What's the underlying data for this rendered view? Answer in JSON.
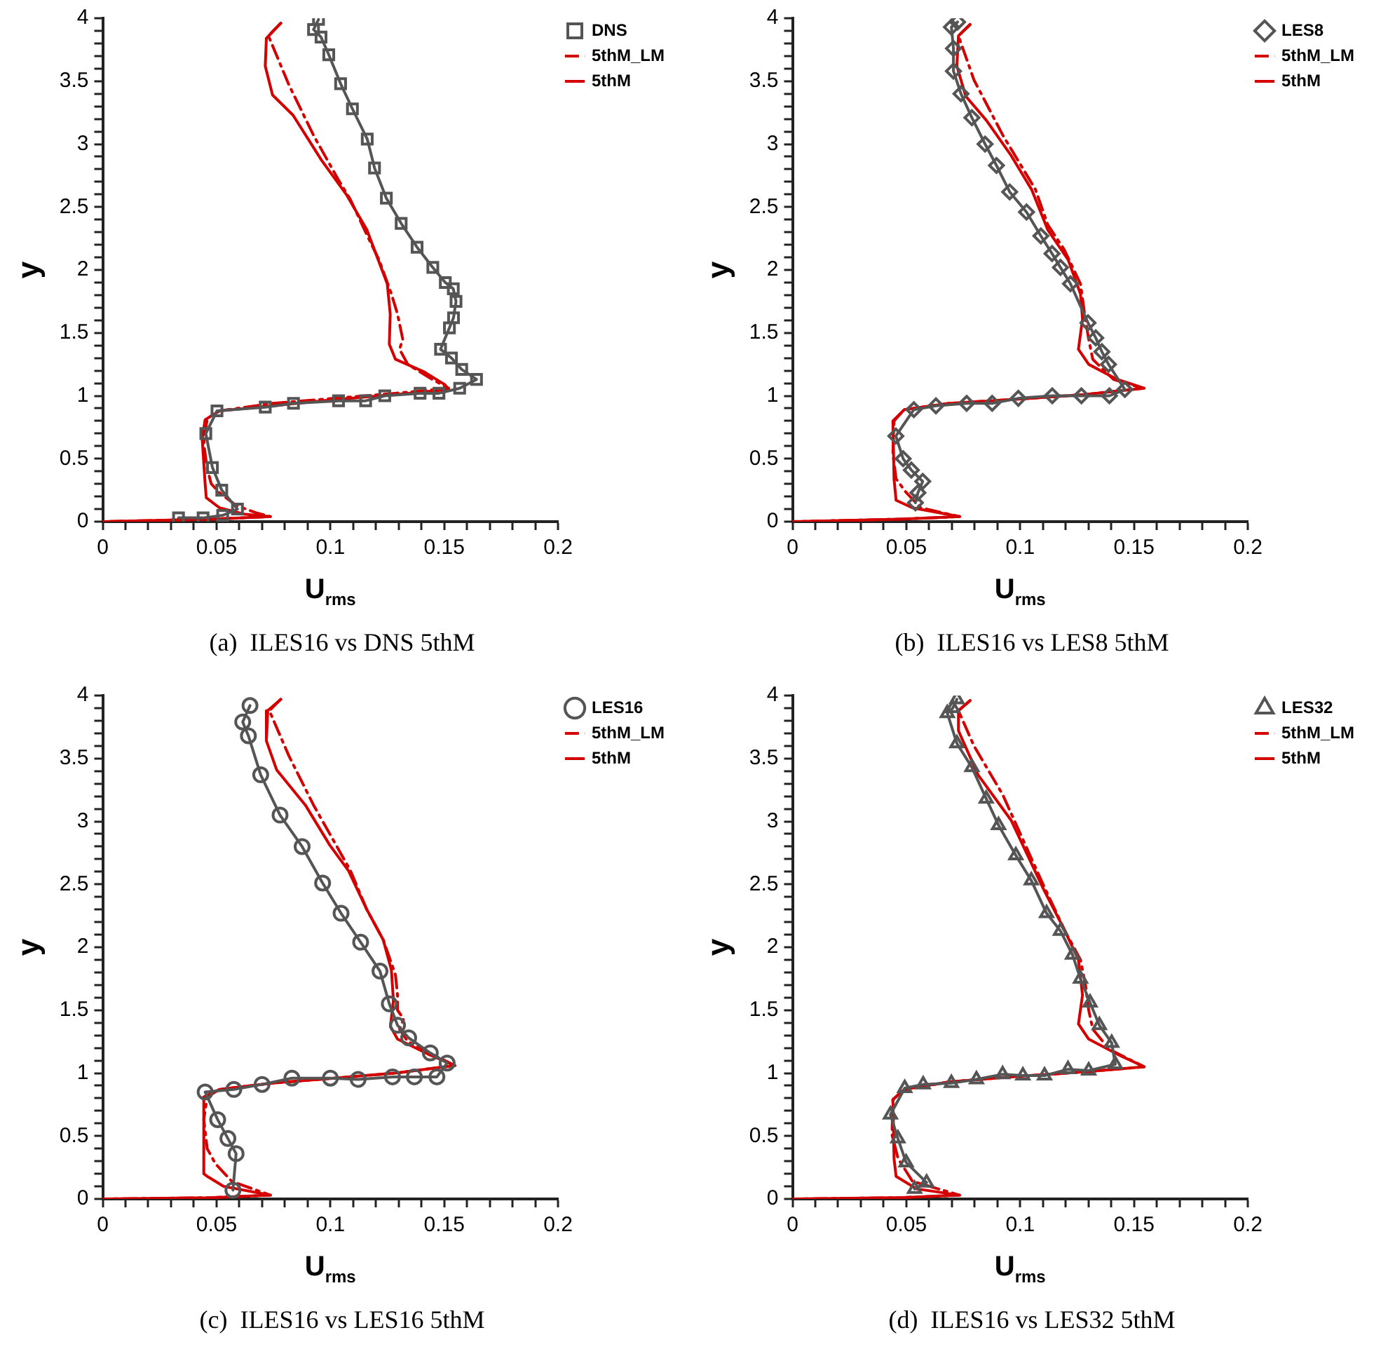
{
  "chart_data": [
    {
      "type": "line",
      "title": "(a)  ILES16 vs DNS 5thM",
      "xlabel": "U$_{rms}$",
      "ylabel": "y",
      "xlim": [
        0,
        0.2
      ],
      "ylim": [
        0,
        4
      ],
      "legend": "top right",
      "xticks": [
        0,
        {
          "value": 0.01,
          "label": null
        },
        {
          "value": 0.02,
          "label": null
        },
        {
          "value": 0.03,
          "label": null
        },
        {
          "value": 0.04,
          "label": null
        },
        0.05,
        {
          "value": 0.06,
          "label": null
        },
        {
          "value": 0.07,
          "label": null
        },
        {
          "value": 0.08,
          "label": null
        },
        {
          "value": 0.09,
          "label": null
        },
        0.1,
        {
          "value": 0.11,
          "label": null
        },
        {
          "value": 0.12,
          "label": null
        },
        {
          "value": 0.13,
          "label": null
        },
        {
          "value": 0.14,
          "label": null
        },
        0.15,
        {
          "value": 0.16,
          "label": null
        },
        {
          "value": 0.17,
          "label": null
        },
        {
          "value": 0.18,
          "label": null
        },
        {
          "value": 0.19,
          "label": null
        },
        0.2
      ],
      "yticks": [
        0,
        {
          "value": 0.1,
          "label": null
        },
        {
          "value": 0.2,
          "label": null
        },
        {
          "value": 0.3,
          "label": null
        },
        {
          "value": 0.4,
          "label": null
        },
        0.5,
        {
          "value": 0.6,
          "label": null
        },
        {
          "value": 0.7,
          "label": null
        },
        {
          "value": 0.8,
          "label": null
        },
        {
          "value": 0.9,
          "label": null
        },
        1,
        {
          "value": 1.1,
          "label": null
        },
        {
          "value": 1.2,
          "label": null
        },
        {
          "value": 1.3,
          "label": null
        },
        {
          "value": 1.4,
          "label": null
        },
        1.5,
        {
          "value": 1.6,
          "label": null
        },
        {
          "value": 1.7,
          "label": null
        },
        {
          "value": 1.8,
          "label": null
        },
        {
          "value": 1.9,
          "label": null
        },
        2,
        {
          "value": 2.1,
          "label": null
        },
        {
          "value": 2.2,
          "label": null
        },
        {
          "value": 2.3,
          "label": null
        },
        {
          "value": 2.4,
          "label": null
        },
        2.5,
        {
          "value": 2.6,
          "label": null
        },
        {
          "value": 2.7,
          "label": null
        },
        {
          "value": 2.8,
          "label": null
        },
        {
          "value": 2.9,
          "label": null
        },
        3,
        {
          "value": 3.1,
          "label": null
        },
        {
          "value": 3.2,
          "label": null
        },
        {
          "value": 3.3,
          "label": null
        },
        {
          "value": 3.4,
          "label": null
        },
        3.5,
        {
          "value": 3.6,
          "label": null
        },
        {
          "value": 3.7,
          "label": null
        },
        {
          "value": 3.8,
          "label": null
        },
        {
          "value": 3.9,
          "label": null
        },
        4
      ],
      "series": [
        {
          "name": "DNS",
          "color": "#555555",
          "marker": "square",
          "line_style": "solid",
          "x": [
            0.0948,
            0.0926,
            0.0959,
            0.0993,
            0.1045,
            0.1097,
            0.1162,
            0.1194,
            0.1246,
            0.1311,
            0.1381,
            0.145,
            0.1505,
            0.154,
            0.1552,
            0.1541,
            0.1523,
            0.1484,
            0.1532,
            0.1577,
            0.1642,
            0.1568,
            0.1477,
            0.1394,
            0.1239,
            0.1155,
            0.1036,
            0.0838,
            0.0714,
            0.0502,
            0.0453,
            0.0482,
            0.0523,
            0.0592,
            0.0527,
            0.0441,
            0.0333
          ],
          "values": [
            3.99,
            3.91,
            3.85,
            3.71,
            3.48,
            3.28,
            3.04,
            2.81,
            2.57,
            2.37,
            2.18,
            2.02,
            1.9,
            1.85,
            1.75,
            1.62,
            1.54,
            1.37,
            1.3,
            1.21,
            1.13,
            1.06,
            1.02,
            1.02,
            1.0,
            0.96,
            0.96,
            0.94,
            0.91,
            0.88,
            0.7,
            0.43,
            0.25,
            0.1,
            0.05,
            0.03,
            0.03
          ]
        },
        {
          "name": "5thM_LM",
          "color": "#d40000",
          "marker": "none",
          "line_style": "dashdot",
          "x": [
            0.0782,
            0.0728,
            0.0818,
            0.0926,
            0.1034,
            0.1088,
            0.116,
            0.1214,
            0.1268,
            0.1295,
            0.1318,
            0.1304,
            0.134,
            0.1448,
            0.152,
            0.1286,
            0.1016,
            0.0746,
            0.0513,
            0.0459,
            0.0444,
            0.0459,
            0.0477,
            0.0513,
            0.0585,
            0.0674,
            0.0737,
            0.0477,
            0
          ],
          "values": [
            3.96,
            3.86,
            3.47,
            3.07,
            2.72,
            2.56,
            2.28,
            2.08,
            1.81,
            1.65,
            1.45,
            1.37,
            1.25,
            1.13,
            1.06,
            1.02,
            0.98,
            0.94,
            0.88,
            0.82,
            0.62,
            0.42,
            0.3,
            0.23,
            0.13,
            0.07,
            0.04,
            0.02,
            0
          ]
        },
        {
          "name": "5thM",
          "color": "#d40000",
          "marker": "none",
          "line_style": "solid",
          "x": [
            0.0782,
            0.0719,
            0.0714,
            0.0746,
            0.0836,
            0.0962,
            0.107,
            0.116,
            0.125,
            0.1263,
            0.1259,
            0.1286,
            0.1412,
            0.1502,
            0.152,
            0.1286,
            0.1016,
            0.0746,
            0.0513,
            0.045,
            0.0437,
            0.045,
            0.0455,
            0.0513,
            0.062,
            0.0737,
            0.0477,
            0
          ],
          "values": [
            3.96,
            3.84,
            3.62,
            3.39,
            3.23,
            2.87,
            2.6,
            2.32,
            1.89,
            1.65,
            1.41,
            1.29,
            1.19,
            1.09,
            1.05,
            1.01,
            0.97,
            0.92,
            0.88,
            0.81,
            0.66,
            0.3,
            0.19,
            0.11,
            0.06,
            0.04,
            0.02,
            0
          ]
        }
      ]
    },
    {
      "type": "line",
      "title": "(b)  ILES16 vs LES8 5thM",
      "xlabel": "U$_{rms}$",
      "ylabel": "y",
      "xlim": [
        0,
        0.2
      ],
      "ylim": [
        0,
        4
      ],
      "legend": "top right",
      "xticks": [
        0,
        {
          "value": 0.01,
          "label": null
        },
        {
          "value": 0.02,
          "label": null
        },
        {
          "value": 0.03,
          "label": null
        },
        {
          "value": 0.04,
          "label": null
        },
        0.05,
        {
          "value": 0.06,
          "label": null
        },
        {
          "value": 0.07,
          "label": null
        },
        {
          "value": 0.08,
          "label": null
        },
        {
          "value": 0.09,
          "label": null
        },
        0.1,
        {
          "value": 0.11,
          "label": null
        },
        {
          "value": 0.12,
          "label": null
        },
        {
          "value": 0.13,
          "label": null
        },
        {
          "value": 0.14,
          "label": null
        },
        0.15,
        {
          "value": 0.16,
          "label": null
        },
        {
          "value": 0.17,
          "label": null
        },
        {
          "value": 0.18,
          "label": null
        },
        {
          "value": 0.19,
          "label": null
        },
        0.2
      ],
      "yticks": [
        0,
        {
          "value": 0.1,
          "label": null
        },
        {
          "value": 0.2,
          "label": null
        },
        {
          "value": 0.3,
          "label": null
        },
        {
          "value": 0.4,
          "label": null
        },
        0.5,
        {
          "value": 0.6,
          "label": null
        },
        {
          "value": 0.7,
          "label": null
        },
        {
          "value": 0.8,
          "label": null
        },
        {
          "value": 0.9,
          "label": null
        },
        1,
        {
          "value": 1.1,
          "label": null
        },
        {
          "value": 1.2,
          "label": null
        },
        {
          "value": 1.3,
          "label": null
        },
        {
          "value": 1.4,
          "label": null
        },
        1.5,
        {
          "value": 1.6,
          "label": null
        },
        {
          "value": 1.7,
          "label": null
        },
        {
          "value": 1.8,
          "label": null
        },
        {
          "value": 1.9,
          "label": null
        },
        2,
        {
          "value": 2.1,
          "label": null
        },
        {
          "value": 2.2,
          "label": null
        },
        {
          "value": 2.3,
          "label": null
        },
        {
          "value": 2.4,
          "label": null
        },
        2.5,
        {
          "value": 2.6,
          "label": null
        },
        {
          "value": 2.7,
          "label": null
        },
        {
          "value": 2.8,
          "label": null
        },
        {
          "value": 2.9,
          "label": null
        },
        3,
        {
          "value": 3.1,
          "label": null
        },
        {
          "value": 3.2,
          "label": null
        },
        {
          "value": 3.3,
          "label": null
        },
        {
          "value": 3.4,
          "label": null
        },
        3.5,
        {
          "value": 3.6,
          "label": null
        },
        {
          "value": 3.7,
          "label": null
        },
        {
          "value": 3.8,
          "label": null
        },
        {
          "value": 3.9,
          "label": null
        },
        4
      ],
      "series": [
        {
          "name": "LES8",
          "color": "#555555",
          "marker": "diamond",
          "line_style": "solid",
          "x": [
            0.0725,
            0.0698,
            0.0707,
            0.0707,
            0.074,
            0.0788,
            0.0846,
            0.0896,
            0.0954,
            0.1028,
            0.1091,
            0.114,
            0.1177,
            0.1221,
            0.1298,
            0.1332,
            0.1359,
            0.1388,
            0.146,
            0.1392,
            0.1269,
            0.1141,
            0.0992,
            0.0877,
            0.0765,
            0.063,
            0.0533,
            0.0454,
            0.0486,
            0.0522,
            0.0572,
            0.0551,
            0.054
          ],
          "values": [
            3.97,
            3.93,
            3.76,
            3.58,
            3.4,
            3.21,
            3.0,
            2.83,
            2.62,
            2.46,
            2.27,
            2.13,
            2.02,
            1.89,
            1.58,
            1.46,
            1.35,
            1.25,
            1.05,
            1.0,
            1.0,
            1.0,
            0.98,
            0.94,
            0.94,
            0.92,
            0.89,
            0.68,
            0.5,
            0.41,
            0.32,
            0.23,
            0.15
          ]
        },
        {
          "name": "5thM_LM",
          "color": "#d40000",
          "marker": "none",
          "line_style": "dashdot",
          "x": [
            0.078,
            0.0729,
            0.0797,
            0.0924,
            0.1067,
            0.1121,
            0.1194,
            0.1265,
            0.1283,
            0.1301,
            0.1319,
            0.141,
            0.1536,
            0.1283,
            0.0959,
            0.0689,
            0.0491,
            0.0446,
            0.0441,
            0.0455,
            0.05,
            0.0563,
            0.0734,
            0.0473,
            0
          ],
          "values": [
            3.95,
            3.86,
            3.51,
            3.07,
            2.64,
            2.36,
            2.16,
            1.89,
            1.65,
            1.45,
            1.29,
            1.13,
            1.06,
            1.01,
            0.97,
            0.94,
            0.89,
            0.8,
            0.54,
            0.34,
            0.23,
            0.11,
            0.04,
            0.02,
            0
          ]
        },
        {
          "name": "5thM",
          "color": "#d40000",
          "marker": "none",
          "line_style": "solid",
          "x": [
            0.078,
            0.0729,
            0.0722,
            0.0761,
            0.0851,
            0.096,
            0.105,
            0.1121,
            0.1211,
            0.1265,
            0.1274,
            0.1256,
            0.1301,
            0.1427,
            0.1545,
            0.1283,
            0.0959,
            0.0689,
            0.0491,
            0.0441,
            0.0446,
            0.0455,
            0.0527,
            0.0734,
            0.0473,
            0
          ],
          "values": [
            3.95,
            3.86,
            3.62,
            3.38,
            3.19,
            2.91,
            2.64,
            2.32,
            2.08,
            1.81,
            1.61,
            1.37,
            1.25,
            1.13,
            1.06,
            1.01,
            0.97,
            0.94,
            0.89,
            0.8,
            0.34,
            0.17,
            0.11,
            0.04,
            0.02,
            0
          ]
        }
      ]
    },
    {
      "type": "line",
      "title": "(c)  ILES16 vs LES16 5thM",
      "xlabel": "U$_{rms}$",
      "ylabel": "y",
      "xlim": [
        0,
        0.2
      ],
      "ylim": [
        0,
        4
      ],
      "legend": "top right",
      "xticks": [
        0,
        {
          "value": 0.01,
          "label": null
        },
        {
          "value": 0.02,
          "label": null
        },
        {
          "value": 0.03,
          "label": null
        },
        {
          "value": 0.04,
          "label": null
        },
        0.05,
        {
          "value": 0.06,
          "label": null
        },
        {
          "value": 0.07,
          "label": null
        },
        {
          "value": 0.08,
          "label": null
        },
        {
          "value": 0.09,
          "label": null
        },
        0.1,
        {
          "value": 0.11,
          "label": null
        },
        {
          "value": 0.12,
          "label": null
        },
        {
          "value": 0.13,
          "label": null
        },
        {
          "value": 0.14,
          "label": null
        },
        0.15,
        {
          "value": 0.16,
          "label": null
        },
        {
          "value": 0.17,
          "label": null
        },
        {
          "value": 0.18,
          "label": null
        },
        {
          "value": 0.19,
          "label": null
        },
        0.2
      ],
      "yticks": [
        0,
        {
          "value": 0.1,
          "label": null
        },
        {
          "value": 0.2,
          "label": null
        },
        {
          "value": 0.3,
          "label": null
        },
        {
          "value": 0.4,
          "label": null
        },
        0.5,
        {
          "value": 0.6,
          "label": null
        },
        {
          "value": 0.7,
          "label": null
        },
        {
          "value": 0.8,
          "label": null
        },
        {
          "value": 0.9,
          "label": null
        },
        1,
        {
          "value": 1.1,
          "label": null
        },
        {
          "value": 1.2,
          "label": null
        },
        {
          "value": 1.3,
          "label": null
        },
        {
          "value": 1.4,
          "label": null
        },
        1.5,
        {
          "value": 1.6,
          "label": null
        },
        {
          "value": 1.7,
          "label": null
        },
        {
          "value": 1.8,
          "label": null
        },
        {
          "value": 1.9,
          "label": null
        },
        2,
        {
          "value": 2.1,
          "label": null
        },
        {
          "value": 2.2,
          "label": null
        },
        {
          "value": 2.3,
          "label": null
        },
        {
          "value": 2.4,
          "label": null
        },
        2.5,
        {
          "value": 2.6,
          "label": null
        },
        {
          "value": 2.7,
          "label": null
        },
        {
          "value": 2.8,
          "label": null
        },
        {
          "value": 2.9,
          "label": null
        },
        3,
        {
          "value": 3.1,
          "label": null
        },
        {
          "value": 3.2,
          "label": null
        },
        {
          "value": 3.3,
          "label": null
        },
        {
          "value": 3.4,
          "label": null
        },
        3.5,
        {
          "value": 3.6,
          "label": null
        },
        {
          "value": 3.7,
          "label": null
        },
        {
          "value": 3.8,
          "label": null
        },
        {
          "value": 3.9,
          "label": null
        },
        4
      ],
      "series": [
        {
          "name": "LES16",
          "color": "#555555",
          "marker": "circle",
          "line_style": "solid",
          "x": [
            0.0647,
            0.0615,
            0.064,
            0.0694,
            0.0779,
            0.0876,
            0.0966,
            0.1047,
            0.1133,
            0.1218,
            0.1259,
            0.1295,
            0.1344,
            0.1439,
            0.1513,
            0.1468,
            0.1369,
            0.1273,
            0.1122,
            0.1,
            0.0831,
            0.07,
            0.0576,
            0.045,
            0.0505,
            0.055,
            0.0586,
            0.0572
          ],
          "values": [
            3.92,
            3.79,
            3.68,
            3.37,
            3.05,
            2.8,
            2.51,
            2.27,
            2.04,
            1.81,
            1.55,
            1.38,
            1.28,
            1.16,
            1.08,
            0.97,
            0.97,
            0.97,
            0.95,
            0.96,
            0.96,
            0.91,
            0.87,
            0.85,
            0.63,
            0.48,
            0.36,
            0.07
          ]
        },
        {
          "name": "5thM_LM",
          "color": "#d40000",
          "marker": "none",
          "line_style": "dashdot",
          "x": [
            0.0782,
            0.0732,
            0.0818,
            0.0926,
            0.1088,
            0.116,
            0.1232,
            0.1286,
            0.1295,
            0.1295,
            0.1322,
            0.1304,
            0.134,
            0.1448,
            0.1547,
            0.1286,
            0.1016,
            0.0746,
            0.0513,
            0.0459,
            0.0444,
            0.0459,
            0.0495,
            0.0567,
            0.0737,
            0.0477,
            0
          ],
          "values": [
            3.97,
            3.88,
            3.52,
            3.13,
            2.61,
            2.3,
            2.06,
            1.78,
            1.62,
            1.5,
            1.43,
            1.35,
            1.25,
            1.15,
            1.06,
            1.0,
            0.96,
            0.92,
            0.87,
            0.81,
            0.63,
            0.4,
            0.28,
            0.14,
            0.03,
            0.01,
            0
          ]
        },
        {
          "name": "5thM",
          "color": "#d40000",
          "marker": "none",
          "line_style": "solid",
          "x": [
            0.0782,
            0.0725,
            0.0719,
            0.0764,
            0.089,
            0.0998,
            0.1079,
            0.116,
            0.1232,
            0.1268,
            0.1277,
            0.1264,
            0.1295,
            0.143,
            0.1547,
            0.1286,
            0.1016,
            0.0746,
            0.0513,
            0.0444,
            0.0444,
            0.0459,
            0.0531,
            0.0737,
            0.0477,
            0
          ],
          "values": [
            3.97,
            3.88,
            3.64,
            3.41,
            3.13,
            2.81,
            2.61,
            2.3,
            2.06,
            1.82,
            1.58,
            1.37,
            1.27,
            1.15,
            1.06,
            1.0,
            0.96,
            0.92,
            0.87,
            0.81,
            0.2,
            0.18,
            0.1,
            0.03,
            0.01,
            0
          ]
        }
      ]
    },
    {
      "type": "line",
      "title": "(d)  ILES16 vs LES32 5thM",
      "xlabel": "U$_{rms}$",
      "ylabel": "y",
      "xlim": [
        0,
        0.2
      ],
      "ylim": [
        0,
        4
      ],
      "legend": "top right",
      "xticks": [
        0,
        {
          "value": 0.01,
          "label": null
        },
        {
          "value": 0.02,
          "label": null
        },
        {
          "value": 0.03,
          "label": null
        },
        {
          "value": 0.04,
          "label": null
        },
        0.05,
        {
          "value": 0.06,
          "label": null
        },
        {
          "value": 0.07,
          "label": null
        },
        {
          "value": 0.08,
          "label": null
        },
        {
          "value": 0.09,
          "label": null
        },
        0.1,
        {
          "value": 0.11,
          "label": null
        },
        {
          "value": 0.12,
          "label": null
        },
        {
          "value": 0.13,
          "label": null
        },
        {
          "value": 0.14,
          "label": null
        },
        0.15,
        {
          "value": 0.16,
          "label": null
        },
        {
          "value": 0.17,
          "label": null
        },
        {
          "value": 0.18,
          "label": null
        },
        {
          "value": 0.19,
          "label": null
        },
        0.2
      ],
      "yticks": [
        0,
        {
          "value": 0.1,
          "label": null
        },
        {
          "value": 0.2,
          "label": null
        },
        {
          "value": 0.3,
          "label": null
        },
        {
          "value": 0.4,
          "label": null
        },
        0.5,
        {
          "value": 0.6,
          "label": null
        },
        {
          "value": 0.7,
          "label": null
        },
        {
          "value": 0.8,
          "label": null
        },
        {
          "value": 0.9,
          "label": null
        },
        1,
        {
          "value": 1.1,
          "label": null
        },
        {
          "value": 1.2,
          "label": null
        },
        {
          "value": 1.3,
          "label": null
        },
        {
          "value": 1.4,
          "label": null
        },
        1.5,
        {
          "value": 1.6,
          "label": null
        },
        {
          "value": 1.7,
          "label": null
        },
        {
          "value": 1.8,
          "label": null
        },
        {
          "value": 1.9,
          "label": null
        },
        2,
        {
          "value": 2.1,
          "label": null
        },
        {
          "value": 2.2,
          "label": null
        },
        {
          "value": 2.3,
          "label": null
        },
        {
          "value": 2.4,
          "label": null
        },
        2.5,
        {
          "value": 2.6,
          "label": null
        },
        {
          "value": 2.7,
          "label": null
        },
        {
          "value": 2.8,
          "label": null
        },
        {
          "value": 2.9,
          "label": null
        },
        3,
        {
          "value": 3.1,
          "label": null
        },
        {
          "value": 3.2,
          "label": null
        },
        {
          "value": 3.3,
          "label": null
        },
        {
          "value": 3.4,
          "label": null
        },
        3.5,
        {
          "value": 3.6,
          "label": null
        },
        {
          "value": 3.7,
          "label": null
        },
        {
          "value": 3.8,
          "label": null
        },
        {
          "value": 3.9,
          "label": null
        },
        4
      ],
      "series": [
        {
          "name": "LES32",
          "color": "#555555",
          "marker": "triangle",
          "line_style": "solid",
          "x": [
            0.0722,
            0.0704,
            0.068,
            0.0722,
            0.0788,
            0.0851,
            0.0905,
            0.0981,
            0.1049,
            0.1116,
            0.1177,
            0.123,
            0.1265,
            0.1307,
            0.1348,
            0.1402,
            0.1418,
            0.1301,
            0.121,
            0.1107,
            0.1012,
            0.0923,
            0.0808,
            0.0698,
            0.0574,
            0.0493,
            0.043,
            0.0463,
            0.0499,
            0.0589,
            0.0536
          ],
          "values": [
            3.97,
            3.9,
            3.86,
            3.62,
            3.43,
            3.18,
            2.97,
            2.73,
            2.53,
            2.27,
            2.13,
            1.94,
            1.75,
            1.56,
            1.38,
            1.24,
            1.07,
            1.02,
            1.03,
            0.98,
            0.98,
            0.99,
            0.95,
            0.92,
            0.91,
            0.88,
            0.67,
            0.48,
            0.29,
            0.13,
            0.08
          ]
        },
        {
          "name": "5thM_LM",
          "color": "#d40000",
          "marker": "none",
          "line_style": "dashdot",
          "x": [
            0.078,
            0.0729,
            0.0797,
            0.0924,
            0.1103,
            0.1194,
            0.1265,
            0.1287,
            0.1301,
            0.1319,
            0.1391,
            0.1545,
            0.1283,
            0.0959,
            0.0689,
            0.0491,
            0.0441,
            0.0437,
            0.0464,
            0.0527,
            0.0734,
            0.0473,
            0
          ],
          "values": [
            3.96,
            3.88,
            3.6,
            3.21,
            2.49,
            2.14,
            1.9,
            1.7,
            1.5,
            1.35,
            1.19,
            1.05,
            1.01,
            0.97,
            0.93,
            0.87,
            0.79,
            0.51,
            0.32,
            0.14,
            0.03,
            0.01,
            0
          ]
        },
        {
          "name": "5thM",
          "color": "#d40000",
          "marker": "none",
          "line_style": "solid",
          "x": [
            0.078,
            0.0729,
            0.0729,
            0.0815,
            0.096,
            0.1103,
            0.1194,
            0.1256,
            0.1274,
            0.1256,
            0.1301,
            0.1427,
            0.1545,
            0.1283,
            0.0959,
            0.0689,
            0.0491,
            0.0441,
            0.0446,
            0.0455,
            0.0545,
            0.0734,
            0.0473,
            0
          ],
          "values": [
            3.96,
            3.88,
            3.72,
            3.37,
            3.01,
            2.46,
            2.14,
            1.9,
            1.62,
            1.39,
            1.27,
            1.15,
            1.05,
            1.01,
            0.97,
            0.93,
            0.87,
            0.79,
            0.32,
            0.18,
            0.08,
            0.03,
            0.01,
            0
          ]
        }
      ]
    }
  ]
}
